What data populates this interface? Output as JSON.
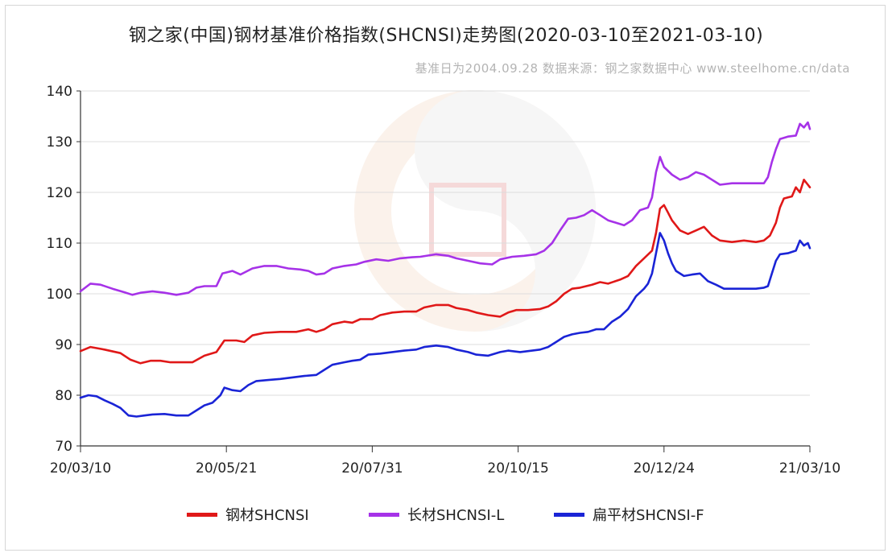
{
  "chart_data": {
    "type": "line",
    "title": "钢之家(中国)钢材基准价格指数(SHCNSI)走势图(2020-03-10至2021-03-10)",
    "subtitle": "基准日为2004.09.28   数据来源：钢之家数据中心  www.steelhome.cn/data",
    "x_tick_labels": [
      "20/03/10",
      "20/05/21",
      "20/07/31",
      "20/10/15",
      "20/12/24",
      "21/03/10"
    ],
    "x_range": [
      0,
      365
    ],
    "ylim": [
      70,
      140
    ],
    "yticks": [
      70,
      80,
      90,
      100,
      110,
      120,
      130,
      140
    ],
    "grid": true,
    "legend_position": "bottom",
    "series": [
      {
        "name": "钢材SHCNSI",
        "color": "#e01818",
        "points": [
          [
            0,
            88.7
          ],
          [
            5,
            89.5
          ],
          [
            12,
            89.0
          ],
          [
            20,
            88.3
          ],
          [
            25,
            87.0
          ],
          [
            30,
            86.3
          ],
          [
            35,
            86.8
          ],
          [
            40,
            86.8
          ],
          [
            45,
            86.5
          ],
          [
            50,
            86.5
          ],
          [
            56,
            86.5
          ],
          [
            62,
            87.8
          ],
          [
            68,
            88.5
          ],
          [
            72,
            90.8
          ],
          [
            78,
            90.8
          ],
          [
            82,
            90.5
          ],
          [
            86,
            91.8
          ],
          [
            92,
            92.3
          ],
          [
            100,
            92.5
          ],
          [
            108,
            92.5
          ],
          [
            114,
            93.0
          ],
          [
            118,
            92.5
          ],
          [
            122,
            93.0
          ],
          [
            126,
            94.0
          ],
          [
            132,
            94.5
          ],
          [
            136,
            94.3
          ],
          [
            140,
            95.0
          ],
          [
            146,
            95.0
          ],
          [
            150,
            95.8
          ],
          [
            156,
            96.3
          ],
          [
            162,
            96.5
          ],
          [
            168,
            96.5
          ],
          [
            172,
            97.3
          ],
          [
            178,
            97.8
          ],
          [
            184,
            97.8
          ],
          [
            188,
            97.2
          ],
          [
            194,
            96.8
          ],
          [
            198,
            96.3
          ],
          [
            204,
            95.8
          ],
          [
            210,
            95.5
          ],
          [
            214,
            96.3
          ],
          [
            218,
            96.8
          ],
          [
            224,
            96.8
          ],
          [
            230,
            97.0
          ],
          [
            234,
            97.5
          ],
          [
            238,
            98.5
          ],
          [
            242,
            100.0
          ],
          [
            246,
            101.0
          ],
          [
            250,
            101.2
          ],
          [
            256,
            101.8
          ],
          [
            260,
            102.3
          ],
          [
            264,
            102.0
          ],
          [
            270,
            102.8
          ],
          [
            274,
            103.5
          ],
          [
            278,
            105.5
          ],
          [
            282,
            107.0
          ],
          [
            286,
            108.5
          ],
          [
            288,
            112.0
          ],
          [
            290,
            116.8
          ],
          [
            292,
            117.5
          ],
          [
            294,
            116.0
          ],
          [
            296,
            114.5
          ],
          [
            300,
            112.5
          ],
          [
            304,
            111.8
          ],
          [
            308,
            112.5
          ],
          [
            312,
            113.2
          ],
          [
            316,
            111.5
          ],
          [
            320,
            110.5
          ],
          [
            326,
            110.2
          ],
          [
            332,
            110.5
          ],
          [
            338,
            110.2
          ],
          [
            342,
            110.5
          ],
          [
            345,
            111.5
          ],
          [
            348,
            114.0
          ],
          [
            350,
            117.0
          ],
          [
            352,
            118.8
          ],
          [
            354,
            119.0
          ],
          [
            356,
            119.2
          ],
          [
            358,
            121.0
          ],
          [
            360,
            120.0
          ],
          [
            362,
            122.5
          ],
          [
            364,
            121.5
          ],
          [
            365,
            121.0
          ]
        ]
      },
      {
        "name": "长材SHCNSI-L",
        "color": "#a632e8",
        "points": [
          [
            0,
            100.5
          ],
          [
            5,
            102.0
          ],
          [
            10,
            101.8
          ],
          [
            16,
            101.0
          ],
          [
            22,
            100.3
          ],
          [
            26,
            99.8
          ],
          [
            30,
            100.2
          ],
          [
            36,
            100.5
          ],
          [
            42,
            100.2
          ],
          [
            48,
            99.8
          ],
          [
            54,
            100.2
          ],
          [
            58,
            101.2
          ],
          [
            62,
            101.5
          ],
          [
            68,
            101.5
          ],
          [
            71,
            104.0
          ],
          [
            76,
            104.5
          ],
          [
            80,
            103.8
          ],
          [
            86,
            105.0
          ],
          [
            92,
            105.5
          ],
          [
            98,
            105.5
          ],
          [
            104,
            105.0
          ],
          [
            110,
            104.8
          ],
          [
            114,
            104.5
          ],
          [
            118,
            103.8
          ],
          [
            122,
            104.0
          ],
          [
            126,
            105.0
          ],
          [
            132,
            105.5
          ],
          [
            138,
            105.8
          ],
          [
            142,
            106.3
          ],
          [
            148,
            106.8
          ],
          [
            154,
            106.5
          ],
          [
            160,
            107.0
          ],
          [
            166,
            107.2
          ],
          [
            170,
            107.3
          ],
          [
            178,
            107.8
          ],
          [
            184,
            107.5
          ],
          [
            188,
            107.0
          ],
          [
            194,
            106.5
          ],
          [
            200,
            106.0
          ],
          [
            206,
            105.8
          ],
          [
            210,
            106.8
          ],
          [
            216,
            107.3
          ],
          [
            222,
            107.5
          ],
          [
            228,
            107.8
          ],
          [
            232,
            108.5
          ],
          [
            236,
            110.0
          ],
          [
            240,
            112.5
          ],
          [
            244,
            114.8
          ],
          [
            248,
            115.0
          ],
          [
            252,
            115.5
          ],
          [
            256,
            116.5
          ],
          [
            260,
            115.5
          ],
          [
            264,
            114.5
          ],
          [
            268,
            114.0
          ],
          [
            272,
            113.5
          ],
          [
            276,
            114.5
          ],
          [
            280,
            116.5
          ],
          [
            284,
            117.0
          ],
          [
            286,
            119.0
          ],
          [
            288,
            124.0
          ],
          [
            290,
            127.0
          ],
          [
            292,
            125.0
          ],
          [
            296,
            123.5
          ],
          [
            300,
            122.5
          ],
          [
            304,
            123.0
          ],
          [
            308,
            124.0
          ],
          [
            312,
            123.5
          ],
          [
            316,
            122.5
          ],
          [
            320,
            121.5
          ],
          [
            326,
            121.8
          ],
          [
            332,
            121.8
          ],
          [
            338,
            121.8
          ],
          [
            342,
            121.8
          ],
          [
            344,
            123.0
          ],
          [
            346,
            126.0
          ],
          [
            348,
            128.5
          ],
          [
            350,
            130.5
          ],
          [
            354,
            131.0
          ],
          [
            358,
            131.2
          ],
          [
            360,
            133.5
          ],
          [
            362,
            132.8
          ],
          [
            364,
            133.8
          ],
          [
            365,
            132.5
          ]
        ]
      },
      {
        "name": "扁平材SHCNSI-F",
        "color": "#1a24d6",
        "points": [
          [
            0,
            79.5
          ],
          [
            4,
            80.0
          ],
          [
            8,
            79.8
          ],
          [
            12,
            79.0
          ],
          [
            16,
            78.3
          ],
          [
            20,
            77.5
          ],
          [
            24,
            76.0
          ],
          [
            28,
            75.8
          ],
          [
            32,
            76.0
          ],
          [
            36,
            76.2
          ],
          [
            42,
            76.3
          ],
          [
            48,
            76.0
          ],
          [
            54,
            76.0
          ],
          [
            58,
            77.0
          ],
          [
            62,
            78.0
          ],
          [
            66,
            78.5
          ],
          [
            70,
            80.0
          ],
          [
            72,
            81.5
          ],
          [
            76,
            81.0
          ],
          [
            80,
            80.8
          ],
          [
            84,
            82.0
          ],
          [
            88,
            82.8
          ],
          [
            94,
            83.0
          ],
          [
            100,
            83.2
          ],
          [
            106,
            83.5
          ],
          [
            112,
            83.8
          ],
          [
            118,
            84.0
          ],
          [
            122,
            85.0
          ],
          [
            126,
            86.0
          ],
          [
            132,
            86.5
          ],
          [
            136,
            86.8
          ],
          [
            140,
            87.0
          ],
          [
            144,
            88.0
          ],
          [
            150,
            88.2
          ],
          [
            156,
            88.5
          ],
          [
            162,
            88.8
          ],
          [
            168,
            89.0
          ],
          [
            172,
            89.5
          ],
          [
            178,
            89.8
          ],
          [
            184,
            89.5
          ],
          [
            188,
            89.0
          ],
          [
            194,
            88.5
          ],
          [
            198,
            88.0
          ],
          [
            204,
            87.8
          ],
          [
            210,
            88.5
          ],
          [
            214,
            88.8
          ],
          [
            220,
            88.5
          ],
          [
            226,
            88.8
          ],
          [
            230,
            89.0
          ],
          [
            234,
            89.5
          ],
          [
            238,
            90.5
          ],
          [
            242,
            91.5
          ],
          [
            246,
            92.0
          ],
          [
            250,
            92.3
          ],
          [
            254,
            92.5
          ],
          [
            258,
            93.0
          ],
          [
            262,
            93.0
          ],
          [
            266,
            94.5
          ],
          [
            270,
            95.5
          ],
          [
            274,
            97.0
          ],
          [
            278,
            99.5
          ],
          [
            282,
            101.0
          ],
          [
            284,
            102.0
          ],
          [
            286,
            104.0
          ],
          [
            288,
            108.0
          ],
          [
            290,
            112.0
          ],
          [
            292,
            110.5
          ],
          [
            294,
            108.0
          ],
          [
            296,
            106.0
          ],
          [
            298,
            104.5
          ],
          [
            302,
            103.5
          ],
          [
            306,
            103.8
          ],
          [
            310,
            104.0
          ],
          [
            314,
            102.5
          ],
          [
            318,
            101.8
          ],
          [
            322,
            101.0
          ],
          [
            328,
            101.0
          ],
          [
            334,
            101.0
          ],
          [
            338,
            101.0
          ],
          [
            342,
            101.2
          ],
          [
            344,
            101.5
          ],
          [
            346,
            104.0
          ],
          [
            348,
            106.5
          ],
          [
            350,
            107.8
          ],
          [
            354,
            108.0
          ],
          [
            358,
            108.5
          ],
          [
            360,
            110.5
          ],
          [
            362,
            109.5
          ],
          [
            364,
            110.0
          ],
          [
            365,
            109.0
          ]
        ]
      }
    ]
  }
}
